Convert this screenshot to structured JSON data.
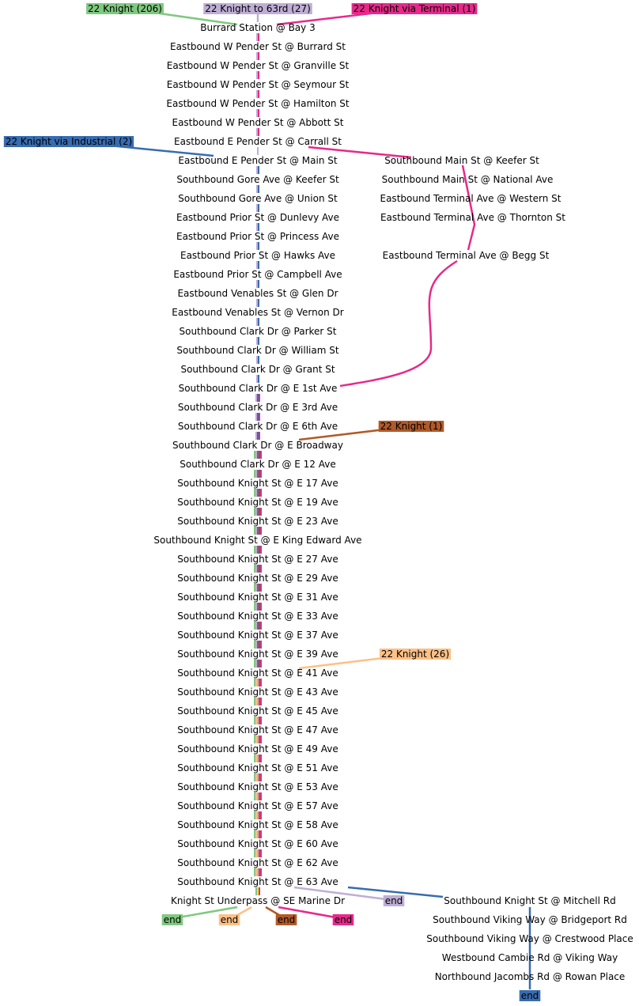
{
  "colors": {
    "route_206": "#7fc97f",
    "route_27": "#beaed4",
    "route_terminal": "#e7298a",
    "route_industrial": "#386cb0",
    "route_1": "#b15928",
    "route_26": "#fdc086",
    "yellow_segment": "#ffd92f",
    "text": "#000000"
  },
  "routes": [
    {
      "key": "route_206",
      "label": "22 Knight (206)"
    },
    {
      "key": "route_27",
      "label": "22 Knight to 63rd (27)"
    },
    {
      "key": "route_terminal",
      "label": "22 Knight via Terminal (1)"
    },
    {
      "key": "route_industrial",
      "label": "22 Knight via Industrial (2)"
    },
    {
      "key": "route_1",
      "label": "22 Knight (1)"
    },
    {
      "key": "route_26",
      "label": "22 Knight (26)"
    }
  ],
  "main_stops": [
    "Burrard Station @ Bay 3",
    "Eastbound W Pender St @ Burrard St",
    "Eastbound W Pender St @ Granville St",
    "Eastbound W Pender St @ Seymour St",
    "Eastbound W Pender St @ Hamilton St",
    "Eastbound W Pender St @ Abbott St",
    "Eastbound E Pender St @ Carrall St",
    "Eastbound E Pender St @ Main St",
    "Southbound Gore Ave @ Keefer St",
    "Southbound Gore Ave @ Union St",
    "Eastbound Prior St @ Dunlevy Ave",
    "Eastbound Prior St @ Princess Ave",
    "Eastbound Prior St @ Hawks Ave",
    "Eastbound Prior St @ Campbell Ave",
    "Eastbound Venables St @ Glen Dr",
    "Eastbound Venables St @ Vernon Dr",
    "Southbound Clark Dr @ Parker St",
    "Southbound Clark Dr @ William St",
    "Southbound Clark Dr @ Grant St",
    "Southbound Clark Dr @ E 1st Ave",
    "Southbound Clark Dr @ E 3rd Ave",
    "Southbound Clark Dr @ E 6th Ave",
    "Southbound Clark Dr @ E Broadway",
    "Southbound Clark Dr @ E 12 Ave",
    "Southbound Knight St @ E 17 Ave",
    "Southbound Knight St @ E 19 Ave",
    "Southbound Knight St @ E 23 Ave",
    "Southbound Knight St @ E King Edward Ave",
    "Southbound Knight St @ E 27 Ave",
    "Southbound Knight St @ E 29 Ave",
    "Southbound Knight St @ E 31 Ave",
    "Southbound Knight St @ E 33 Ave",
    "Southbound Knight St @ E 37 Ave",
    "Southbound Knight St @ E 39 Ave",
    "Southbound Knight St @ E 41 Ave",
    "Southbound Knight St @ E 43 Ave",
    "Southbound Knight St @ E 45 Ave",
    "Southbound Knight St @ E 47 Ave",
    "Southbound Knight St @ E 49 Ave",
    "Southbound Knight St @ E 51 Ave",
    "Southbound Knight St @ E 53 Ave",
    "Southbound Knight St @ E 57 Ave",
    "Southbound Knight St @ E 58 Ave",
    "Southbound Knight St @ E 60 Ave",
    "Southbound Knight St @ E 62 Ave",
    "Southbound Knight St @ E 63 Ave",
    "Knight St Underpass @ SE Marine Dr"
  ],
  "terminal_stops": [
    "Southbound Main St @ Keefer St",
    "Southbound Main St @ National Ave",
    "Eastbound Terminal Ave @ Western St",
    "Eastbound Terminal Ave @ Thornton St",
    "Eastbound Terminal Ave @ Begg St"
  ],
  "south_stops": [
    "Southbound Knight St @ Mitchell Rd",
    "Southbound Viking Way @ Bridgeport Rd",
    "Southbound Viking Way @ Crestwood Place",
    "Westbound Cambie Rd @ Viking Way",
    "Northbound Jacombs Rd @ Rowan Place"
  ],
  "end_label": "end"
}
